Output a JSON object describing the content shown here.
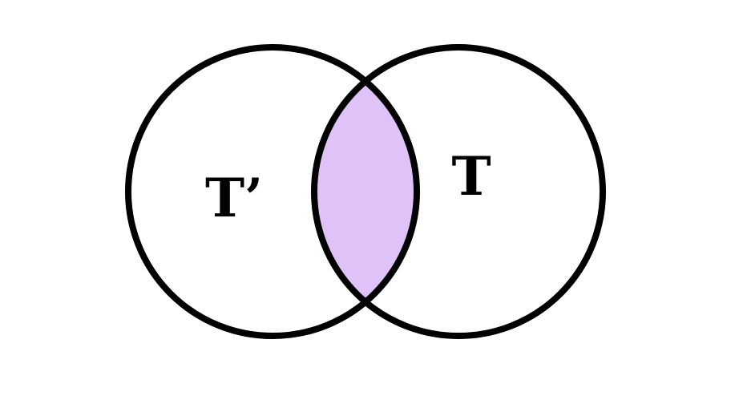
{
  "diagram": {
    "type": "venn",
    "sets": [
      {
        "id": "left",
        "label": "T’"
      },
      {
        "id": "right",
        "label": "T"
      }
    ],
    "highlighted_region": "intersection",
    "colors": {
      "background": "#ffffff",
      "outline": "#000000",
      "intersection_fill": "#dfc3f8",
      "label": "#000000"
    }
  }
}
